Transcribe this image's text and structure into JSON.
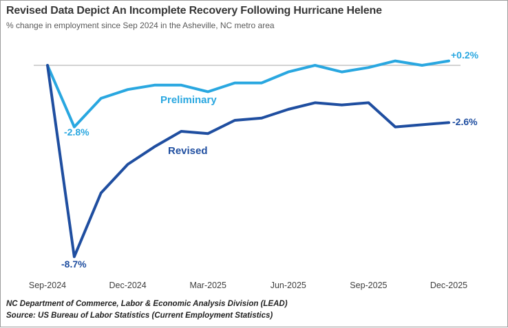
{
  "header": {
    "title": "Revised Data Depict An Incomplete Recovery Following Hurricane Helene",
    "subtitle": "% change in employment since Sep 2024 in the Asheville, NC metro area"
  },
  "chart_data": {
    "type": "line",
    "x": [
      "Sep-2024",
      "Oct-2024",
      "Nov-2024",
      "Dec-2024",
      "Jan-2025",
      "Feb-2025",
      "Mar-2025",
      "Apr-2025",
      "May-2025",
      "Jun-2025",
      "Jul-2025",
      "Aug-2025",
      "Sep-2025",
      "Oct-2025",
      "Nov-2025",
      "Dec-2025"
    ],
    "x_tick_labels": [
      "Sep-2024",
      "Dec-2024",
      "Mar-2025",
      "Jun-2025",
      "Sep-2025",
      "Dec-2025"
    ],
    "ylabel": "% change in employment since Sep 2024",
    "ylim": [
      -9.5,
      0.6
    ],
    "grid": false,
    "zero_line": true,
    "legend_position": "inline-labels",
    "series": [
      {
        "name": "Preliminary",
        "color": "#29A7E0",
        "values": [
          0.0,
          -2.8,
          -1.5,
          -1.1,
          -0.9,
          -0.9,
          -1.2,
          -0.8,
          -0.8,
          -0.3,
          0.0,
          -0.3,
          -0.1,
          0.2,
          0.0,
          0.2
        ],
        "min_label": "-2.8%",
        "end_label": "+0.2%"
      },
      {
        "name": "Revised",
        "color": "#1F4EA0",
        "values": [
          0.0,
          -8.7,
          -5.8,
          -4.5,
          -3.7,
          -3.0,
          -3.1,
          -2.5,
          -2.4,
          -2.0,
          -1.7,
          -1.8,
          -1.7,
          -2.8,
          -2.7,
          -2.6
        ],
        "min_label": "-8.7%",
        "end_label": "-2.6%"
      }
    ]
  },
  "annotations": {
    "preliminary_label": "Preliminary",
    "revised_label": "Revised",
    "preliminary_dip": "-2.8%",
    "revised_dip": "-8.7%",
    "preliminary_end": "+0.2%",
    "revised_end": "-2.6%"
  },
  "footer": {
    "line1": "NC Department of Commerce, Labor & Economic Analysis Division (LEAD)",
    "line2": "Source: US Bureau of Labor Statistics (Current Employment Statistics)"
  },
  "colors": {
    "preliminary": "#29A7E0",
    "revised": "#1F4EA0",
    "zero_line": "#C3C3C3",
    "title": "#363636",
    "subtitle": "#595959",
    "axis_text": "#3D3D3D",
    "footer_text": "#1F1F1F",
    "border": "#9B9B9B"
  }
}
